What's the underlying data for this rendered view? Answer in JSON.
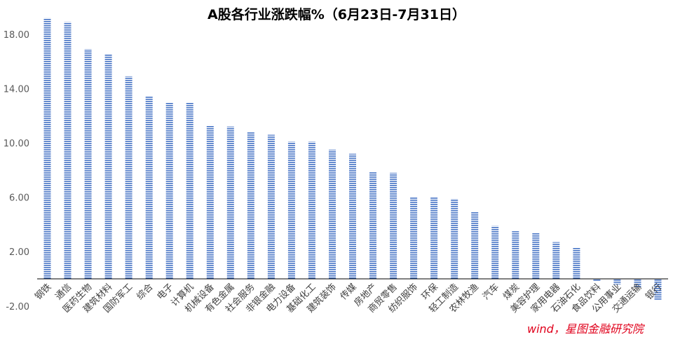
{
  "chart_data": {
    "type": "bar",
    "title": "A股各行业涨跌幅%（6月23日-7月31日）",
    "categories": [
      "钢铁",
      "通信",
      "医药生物",
      "建筑材料",
      "国防军工",
      "综合",
      "电子",
      "计算机",
      "机械设备",
      "有色金属",
      "社会服务",
      "非银金融",
      "电力设备",
      "基础化工",
      "建筑装饰",
      "传媒",
      "房地产",
      "商贸零售",
      "纺织服饰",
      "环保",
      "轻工制造",
      "农林牧渔",
      "汽车",
      "煤炭",
      "美容护理",
      "家用电器",
      "石油石化",
      "食品饮料",
      "公用事业",
      "交通运输",
      "银行"
    ],
    "values": [
      19.2,
      18.9,
      16.9,
      16.5,
      14.9,
      13.4,
      13.0,
      13.0,
      11.3,
      11.2,
      10.8,
      10.6,
      10.1,
      10.1,
      9.5,
      9.2,
      7.9,
      7.8,
      6.0,
      6.0,
      5.9,
      4.9,
      3.9,
      3.5,
      3.4,
      2.7,
      2.3,
      -0.2,
      -0.4,
      -0.6,
      -1.6
    ],
    "ytick_labels": [
      "-2.00",
      "2.00",
      "6.00",
      "10.00",
      "14.00",
      "18.00"
    ],
    "ylim": [
      -2,
      20
    ],
    "xlabel": "",
    "ylabel": "",
    "grid": false,
    "legend": "none",
    "bar_color": "#4472c4",
    "axis_color": "#000000"
  },
  "source_note": "wind，星图金融研究院"
}
